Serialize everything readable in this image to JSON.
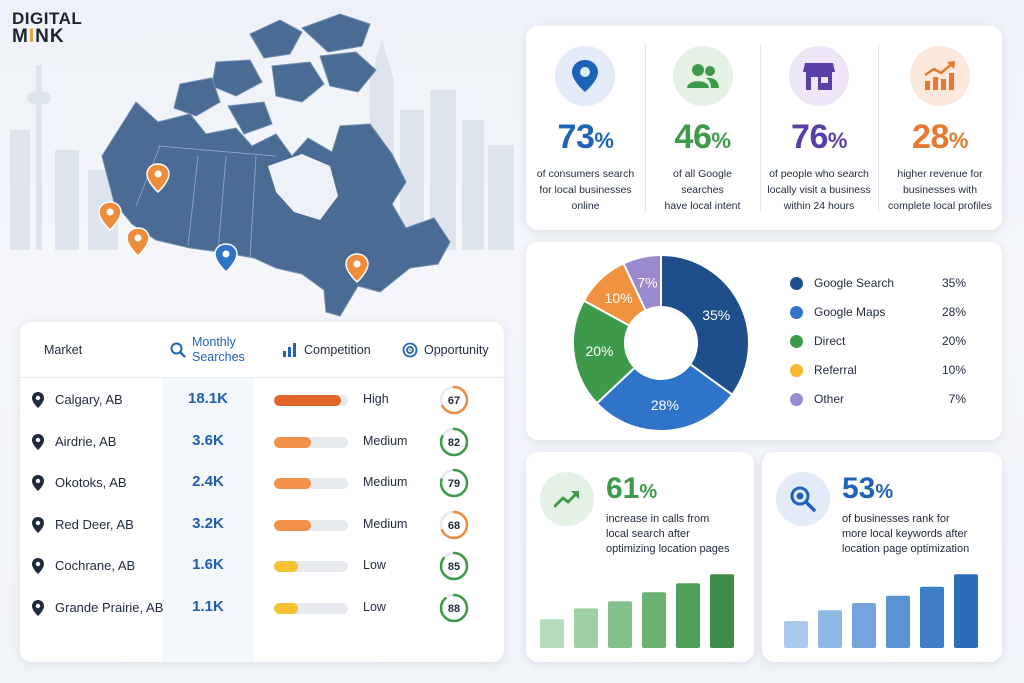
{
  "logo": {
    "line1": "DIGITAL",
    "line2a": "M",
    "line2b": "I",
    "line2c": "NK"
  },
  "table": {
    "headers": {
      "market": "Market",
      "searches_1": "Monthly",
      "searches_2": "Searches",
      "competition": "Competition",
      "opportunity": "Opportunity"
    },
    "rows": [
      {
        "market": "Calgary, AB",
        "searches": "18.1K",
        "level": 0.9,
        "color": "#e4652a",
        "competition": "High",
        "score": "67",
        "score_color": "#ef8d3c",
        "score_value": 67
      },
      {
        "market": "Airdrie, AB",
        "searches": "3.6K",
        "level": 0.5,
        "color": "#f2914a",
        "competition": "Medium",
        "score": "82",
        "score_color": "#3d9a4a",
        "score_value": 82
      },
      {
        "market": "Okotoks, AB",
        "searches": "2.4K",
        "level": 0.5,
        "color": "#f2914a",
        "competition": "Medium",
        "score": "79",
        "score_color": "#3d9a4a",
        "score_value": 79
      },
      {
        "market": "Red Deer, AB",
        "searches": "3.2K",
        "level": 0.5,
        "color": "#f2914a",
        "competition": "Medium",
        "score": "68",
        "score_color": "#ef8d3c",
        "score_value": 68
      },
      {
        "market": "Cochrane, AB",
        "searches": "1.6K",
        "level": 0.32,
        "color": "#f5c233",
        "competition": "Low",
        "score": "85",
        "score_color": "#3d9a4a",
        "score_value": 85
      },
      {
        "market": "Grande Prairie, AB",
        "searches": "1.1K",
        "level": 0.32,
        "color": "#f5c233",
        "competition": "Low",
        "score": "88",
        "score_color": "#3d9a4a",
        "score_value": 88
      }
    ]
  },
  "stats": [
    {
      "value": "73",
      "unit": "%",
      "color": "#1f63b8",
      "bg": "#e3ecf8",
      "icon": "location-pin-icon",
      "desc": [
        "of consumers search",
        "for local businesses",
        "online"
      ]
    },
    {
      "value": "46",
      "unit": "%",
      "color": "#3d9a4a",
      "bg": "#e4f2e6",
      "icon": "users-icon",
      "desc": [
        "of all Google searches",
        "have local intent"
      ]
    },
    {
      "value": "76",
      "unit": "%",
      "color": "#5a3fa6",
      "bg": "#ece6f7",
      "icon": "storefront-icon",
      "desc": [
        "of people who search",
        "locally visit a business",
        "within 24 hours"
      ]
    },
    {
      "value": "28",
      "unit": "%",
      "color": "#e8782e",
      "bg": "#fde9dc",
      "icon": "growth-chart-icon",
      "desc": [
        "higher revenue for",
        "businesses with",
        "complete local profiles"
      ]
    }
  ],
  "chart_data": {
    "type": "pie",
    "donut": true,
    "legend_placement": "right",
    "slices": [
      {
        "name": "Google Search",
        "value": 35,
        "label": "35%",
        "color": "#1f4e8c"
      },
      {
        "name": "Google Maps",
        "value": 28,
        "label": "28%",
        "color": "#2f74c8"
      },
      {
        "name": "Direct",
        "value": 20,
        "label": "20%",
        "color": "#3d9a4a"
      },
      {
        "name": "Referral",
        "value": 10,
        "label": "10%",
        "color": "#f0923f"
      },
      {
        "name": "Other",
        "value": 7,
        "label": "7%",
        "color": "#9a8ad0"
      }
    ]
  },
  "legend_dot_colors": [
    "#1f4e8c",
    "#2f74c8",
    "#3d9a4a",
    "#f5b82e",
    "#9a8ad0"
  ],
  "cards": [
    {
      "value": "61",
      "unit": "%",
      "color": "#3d9a4a",
      "bg": "#e4f2e6",
      "icon": "trend-up-icon",
      "desc": [
        "increase in calls from",
        "local search after",
        "optimizing location pages"
      ],
      "bars": [
        0.32,
        0.44,
        0.52,
        0.62,
        0.72,
        0.82
      ],
      "bar_colors": [
        "#b5dbb8",
        "#9fd0a3",
        "#84c08a",
        "#6ab271",
        "#4f9f58",
        "#3e8c47"
      ]
    },
    {
      "value": "53",
      "unit": "%",
      "color": "#1f63b8",
      "bg": "#e3ecf8",
      "icon": "search-magnifier-icon",
      "desc": [
        "of businesses rank for",
        "more local keywords after",
        "location page optimization"
      ],
      "bars": [
        0.3,
        0.42,
        0.5,
        0.58,
        0.68,
        0.82
      ],
      "bar_colors": [
        "#aac8ec",
        "#8fb7e6",
        "#73a4de",
        "#5a92d4",
        "#3f7fc9",
        "#2b6db9"
      ]
    }
  ],
  "map_pins": [
    {
      "color": "#ef8d3c"
    },
    {
      "color": "#ef8d3c"
    },
    {
      "color": "#ef8d3c"
    },
    {
      "color": "#2f74c8"
    },
    {
      "color": "#ef8d3c"
    }
  ]
}
